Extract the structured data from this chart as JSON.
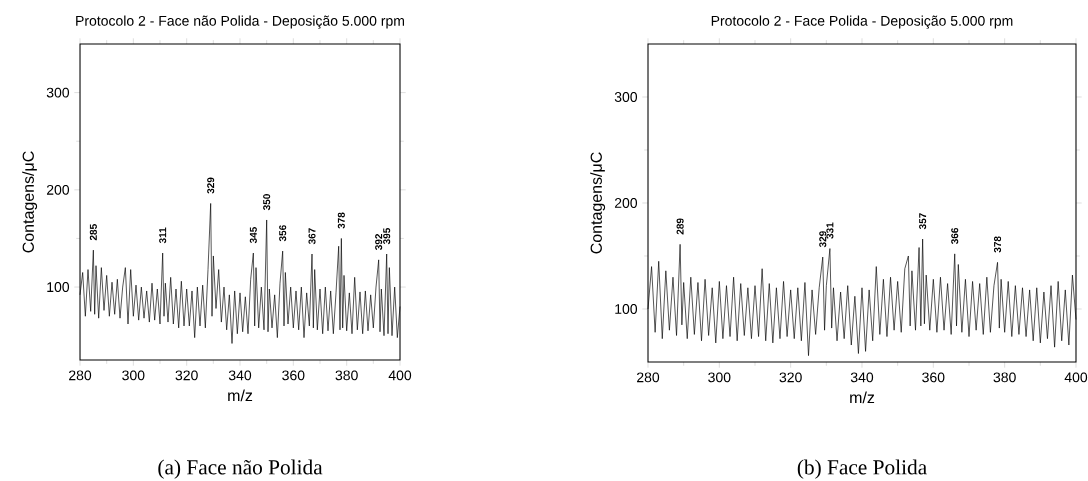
{
  "chart_data": [
    {
      "type": "line",
      "title": "Protocolo 2 - Face não Polida - Deposição 5.000 rpm",
      "xlabel": "m/z",
      "ylabel": "Contagens/μC",
      "xlim": [
        280,
        400
      ],
      "ylim": [
        25,
        350
      ],
      "xticks": [
        280,
        300,
        320,
        340,
        360,
        380,
        400
      ],
      "yticks": [
        100,
        200,
        300
      ],
      "series": [
        {
          "color": "#000000",
          "x": [
            280,
            281,
            282,
            283,
            284,
            285,
            285.5,
            286,
            287,
            288,
            289,
            290,
            291,
            292,
            293,
            294,
            295,
            296,
            297,
            298,
            299,
            300,
            301,
            302,
            303,
            304,
            305,
            306,
            307,
            308,
            309,
            310,
            311,
            311.5,
            312,
            313,
            314,
            315,
            316,
            317,
            318,
            319,
            320,
            321,
            322,
            323,
            324,
            325,
            326,
            327,
            328,
            329,
            329.5,
            330,
            331,
            332,
            333,
            334,
            335,
            336,
            337,
            338,
            339,
            340,
            341,
            342,
            343,
            344,
            345,
            345.5,
            346,
            347,
            348,
            349,
            350,
            350.5,
            351,
            352,
            353,
            354,
            355,
            356,
            356.5,
            357,
            358,
            359,
            360,
            361,
            362,
            363,
            364,
            365,
            366,
            367,
            367.5,
            368,
            369,
            370,
            371,
            372,
            373,
            374,
            375,
            376,
            377,
            377.5,
            378,
            378.5,
            379,
            380,
            381,
            382,
            383,
            384,
            385,
            386,
            387,
            388,
            389,
            390,
            391,
            392,
            392.5,
            393,
            394,
            395,
            395.5,
            396,
            397,
            398,
            399,
            400
          ],
          "values": [
            92,
            115,
            70,
            118,
            75,
            138,
            72,
            122,
            68,
            120,
            76,
            112,
            70,
            105,
            72,
            108,
            68,
            100,
            120,
            62,
            118,
            70,
            102,
            66,
            100,
            68,
            96,
            64,
            104,
            66,
            98,
            62,
            135,
            70,
            104,
            64,
            110,
            62,
            98,
            58,
            106,
            60,
            98,
            60,
            96,
            48,
            100,
            60,
            102,
            58,
            118,
            186,
            70,
            132,
            78,
            118,
            64,
            100,
            56,
            92,
            42,
            96,
            52,
            94,
            54,
            90,
            52,
            108,
            135,
            60,
            120,
            58,
            100,
            56,
            169,
            54,
            98,
            58,
            92,
            48,
            104,
            137,
            60,
            115,
            62,
            100,
            58,
            96,
            56,
            100,
            48,
            94,
            60,
            134,
            58,
            118,
            56,
            98,
            52,
            100,
            55,
            96,
            52,
            94,
            142,
            56,
            150,
            58,
            112,
            55,
            94,
            52,
            110,
            56,
            95,
            52,
            96,
            55,
            92,
            58,
            100,
            128,
            54,
            98,
            50,
            134,
            52,
            120,
            50,
            100,
            48,
            80
          ]
        }
      ],
      "annotations": [
        {
          "text": "285",
          "x": 285,
          "y": 138
        },
        {
          "text": "311",
          "x": 311,
          "y": 135
        },
        {
          "text": "329",
          "x": 329,
          "y": 186
        },
        {
          "text": "345",
          "x": 345,
          "y": 135
        },
        {
          "text": "350",
          "x": 350,
          "y": 169
        },
        {
          "text": "356",
          "x": 356,
          "y": 137
        },
        {
          "text": "367",
          "x": 367,
          "y": 134
        },
        {
          "text": "378",
          "x": 378,
          "y": 150
        },
        {
          "text": "392",
          "x": 392,
          "y": 128
        },
        {
          "text": "395",
          "x": 395,
          "y": 134
        },
        "(a) Face não Polida"
      ]
    },
    {
      "type": "line",
      "title": "Protocolo 2 - Face Polida - Deposição 5.000 rpm",
      "xlabel": "m/z",
      "ylabel": "Contagens/μC",
      "xlim": [
        280,
        400
      ],
      "ylim": [
        50,
        350
      ],
      "xticks": [
        280,
        300,
        320,
        340,
        360,
        380,
        400
      ],
      "yticks": [
        100,
        200,
        300
      ],
      "series": [
        {
          "color": "#000000",
          "x": [
            280,
            281,
            282,
            283,
            284,
            285,
            286,
            287,
            288,
            289,
            289.5,
            290,
            291,
            292,
            293,
            294,
            295,
            296,
            297,
            298,
            299,
            300,
            301,
            302,
            303,
            304,
            305,
            306,
            307,
            308,
            309,
            310,
            311,
            312,
            313,
            314,
            315,
            316,
            317,
            318,
            319,
            320,
            321,
            322,
            323,
            324,
            325,
            326,
            327,
            328,
            329,
            329.5,
            330,
            331,
            331.5,
            332,
            333,
            334,
            335,
            336,
            337,
            338,
            339,
            340,
            341,
            342,
            343,
            344,
            345,
            346,
            347,
            348,
            349,
            350,
            351,
            352,
            353,
            353.5,
            354,
            355,
            356,
            356.5,
            357,
            357.5,
            358,
            359,
            360,
            361,
            362,
            363,
            364,
            365,
            366,
            366.5,
            367,
            368,
            369,
            370,
            371,
            372,
            373,
            374,
            375,
            376,
            377,
            378,
            378.5,
            379,
            380,
            381,
            382,
            383,
            384,
            385,
            386,
            387,
            388,
            389,
            390,
            391,
            392,
            393,
            394,
            395,
            396,
            397,
            398,
            399,
            400
          ],
          "values": [
            100,
            140,
            78,
            145,
            72,
            136,
            80,
            130,
            75,
            161,
            85,
            125,
            72,
            130,
            76,
            125,
            70,
            128,
            75,
            120,
            68,
            126,
            72,
            122,
            74,
            130,
            70,
            124,
            75,
            120,
            72,
            122,
            74,
            138,
            70,
            124,
            68,
            120,
            72,
            126,
            74,
            118,
            72,
            120,
            70,
            125,
            56,
            118,
            76,
            120,
            149,
            80,
            122,
            157,
            82,
            120,
            70,
            116,
            72,
            122,
            66,
            112,
            58,
            120,
            60,
            118,
            70,
            140,
            76,
            128,
            74,
            130,
            80,
            126,
            78,
            138,
            150,
            84,
            136,
            80,
            158,
            84,
            166,
            86,
            132,
            80,
            128,
            78,
            130,
            80,
            124,
            76,
            152,
            84,
            142,
            78,
            128,
            74,
            126,
            80,
            124,
            76,
            130,
            78,
            122,
            144,
            82,
            128,
            78,
            126,
            74,
            122,
            76,
            120,
            74,
            118,
            70,
            120,
            68,
            116,
            72,
            122,
            64,
            126,
            70,
            118,
            66,
            132,
            90
          ]
        }
      ],
      "annotations": [
        {
          "text": "289",
          "x": 289,
          "y": 161
        },
        {
          "text": "329",
          "x": 329,
          "y": 149
        },
        {
          "text": "331",
          "x": 331,
          "y": 157
        },
        {
          "text": "357",
          "x": 357,
          "y": 166
        },
        {
          "text": "366",
          "x": 366,
          "y": 152
        },
        {
          "text": "378",
          "x": 378,
          "y": 144
        },
        "(b) Face Polida"
      ]
    }
  ]
}
